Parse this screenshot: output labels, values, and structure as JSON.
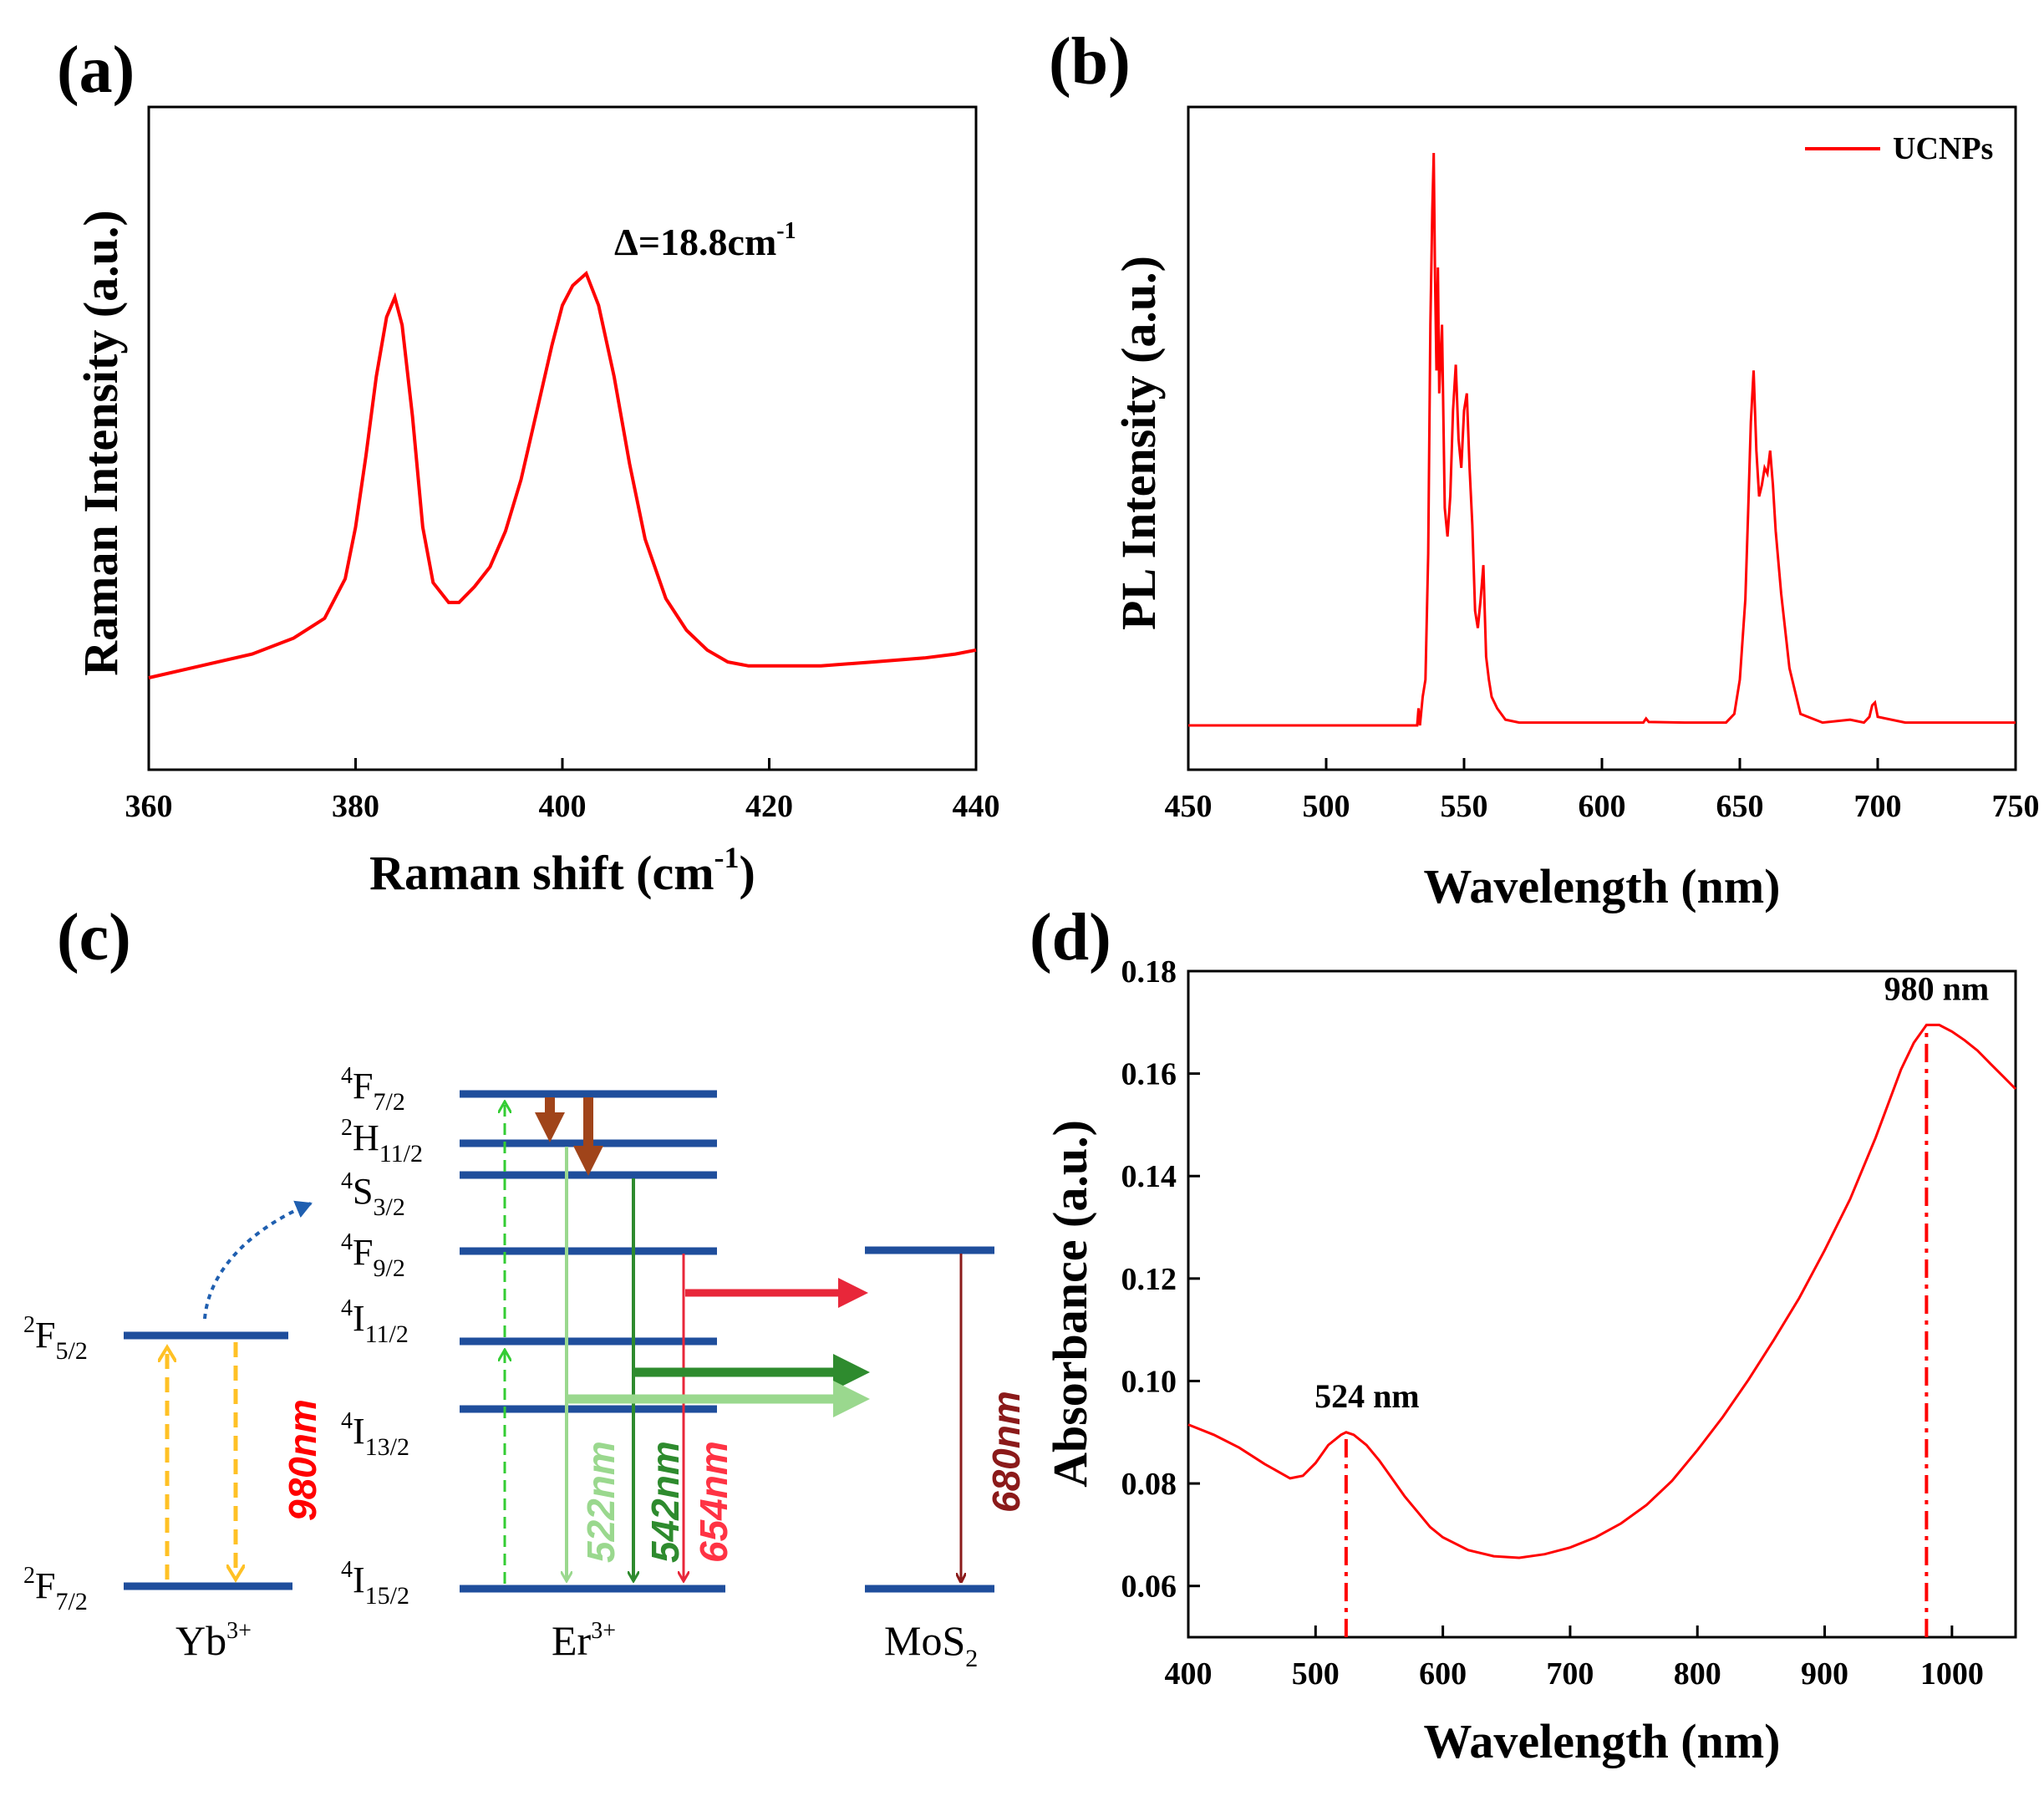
{
  "chart_data": [
    {
      "panel": "(a)",
      "type": "line",
      "xlabel": "Raman shift (cm",
      "xlabel_sup": "-1",
      "xlabel_end": ")",
      "ylabel": "Raman Intensity (a.u.)",
      "xlim": [
        360,
        440
      ],
      "xticks": [
        "360",
        "380",
        "400",
        "420",
        "440"
      ],
      "annotation": "Δ=18.8cm",
      "annotation_sup": "-1",
      "line_color": "#ff0000",
      "series": [
        {
          "name": "Raman",
          "x": [
            360,
            365,
            370,
            374,
            377,
            379,
            380,
            381,
            382,
            383,
            383.8,
            384.5,
            385.5,
            386.5,
            387.5,
            389,
            390,
            391.5,
            393,
            394.5,
            396,
            397.5,
            399,
            400,
            401,
            402.3,
            403.5,
            405,
            406.5,
            408,
            410,
            412,
            414,
            416,
            418,
            420,
            425,
            430,
            435,
            438,
            440
          ],
          "y": [
            0.04,
            0.07,
            0.1,
            0.14,
            0.19,
            0.29,
            0.42,
            0.6,
            0.8,
            0.95,
            1.0,
            0.93,
            0.7,
            0.42,
            0.28,
            0.23,
            0.23,
            0.27,
            0.32,
            0.41,
            0.54,
            0.71,
            0.88,
            0.98,
            1.03,
            1.06,
            0.98,
            0.8,
            0.58,
            0.39,
            0.24,
            0.16,
            0.11,
            0.08,
            0.07,
            0.07,
            0.07,
            0.08,
            0.09,
            0.1,
            0.11
          ]
        }
      ]
    },
    {
      "panel": "(b)",
      "type": "line",
      "xlabel": "Wavelength (nm)",
      "ylabel": "PL Intensity (a.u.)",
      "xlim": [
        450,
        750
      ],
      "xticks": [
        "450",
        "500",
        "550",
        "600",
        "650",
        "700",
        "750"
      ],
      "legend": [
        "UCNPs"
      ],
      "legend_position": "top-right",
      "line_color": "#ff0000",
      "series": [
        {
          "name": "UCNPs",
          "x": [
            450,
            500,
            533,
            533.5,
            534,
            535,
            536,
            537,
            537.8,
            538.5,
            539,
            539.5,
            540,
            540.5,
            541,
            542,
            543,
            544,
            545,
            546,
            547,
            548,
            549,
            550,
            551,
            552,
            553,
            554,
            555,
            556,
            557,
            558,
            559,
            560,
            562,
            565,
            570,
            600,
            615,
            616,
            617,
            630,
            645,
            648,
            650,
            651,
            652,
            653,
            654,
            655,
            656,
            657,
            658,
            659,
            660,
            661,
            662,
            663,
            665,
            668,
            672,
            680,
            690,
            695,
            697,
            698,
            699,
            700,
            710,
            750
          ],
          "y": [
            0.0,
            0.0,
            0.0,
            0.03,
            0.0,
            0.05,
            0.08,
            0.3,
            0.7,
            0.9,
            1.0,
            0.78,
            0.62,
            0.8,
            0.58,
            0.7,
            0.38,
            0.33,
            0.4,
            0.55,
            0.63,
            0.5,
            0.45,
            0.55,
            0.58,
            0.45,
            0.35,
            0.2,
            0.17,
            0.22,
            0.28,
            0.12,
            0.08,
            0.05,
            0.03,
            0.01,
            0.005,
            0.005,
            0.005,
            0.012,
            0.006,
            0.005,
            0.005,
            0.02,
            0.08,
            0.15,
            0.22,
            0.37,
            0.53,
            0.62,
            0.48,
            0.4,
            0.42,
            0.45,
            0.44,
            0.48,
            0.42,
            0.34,
            0.23,
            0.1,
            0.02,
            0.005,
            0.01,
            0.005,
            0.015,
            0.035,
            0.04,
            0.015,
            0.005,
            0.005
          ]
        }
      ]
    },
    {
      "panel": "(d)",
      "type": "line",
      "xlabel": "Wavelength (nm)",
      "ylabel": "Absorbance (a.u.)",
      "xlim": [
        400,
        1050
      ],
      "ylim": [
        0.05,
        0.18
      ],
      "xticks": [
        "400",
        "500",
        "600",
        "700",
        "800",
        "900",
        "1000"
      ],
      "yticks": [
        "0.06",
        "0.08",
        "0.10",
        "0.12",
        "0.14",
        "0.16",
        "0.18"
      ],
      "line_color": "#ff0000",
      "markers": [
        {
          "x": 524,
          "label": "524 nm"
        },
        {
          "x": 980,
          "label": "980 nm"
        }
      ],
      "series": [
        {
          "name": "Absorbance",
          "x": [
            400,
            420,
            440,
            460,
            480,
            490,
            500,
            510,
            520,
            524,
            530,
            540,
            550,
            560,
            570,
            580,
            590,
            600,
            620,
            640,
            660,
            680,
            700,
            720,
            740,
            760,
            780,
            800,
            820,
            840,
            860,
            880,
            900,
            920,
            940,
            960,
            970,
            980,
            990,
            1000,
            1010,
            1020,
            1030,
            1040,
            1050
          ],
          "y": [
            0.0915,
            0.0895,
            0.087,
            0.0838,
            0.081,
            0.0815,
            0.084,
            0.0875,
            0.0895,
            0.09,
            0.0895,
            0.0875,
            0.0845,
            0.081,
            0.0775,
            0.0745,
            0.0715,
            0.0695,
            0.067,
            0.0658,
            0.0655,
            0.0662,
            0.0675,
            0.0695,
            0.0722,
            0.0758,
            0.0805,
            0.0865,
            0.093,
            0.1002,
            0.108,
            0.1162,
            0.1255,
            0.1355,
            0.1475,
            0.1608,
            0.166,
            0.1695,
            0.1695,
            0.1682,
            0.1665,
            0.1645,
            0.162,
            0.1595,
            0.157
          ]
        }
      ]
    }
  ],
  "panel_c": {
    "label": "(c)",
    "yb_levels": [
      {
        "name": "F",
        "sup": "2",
        "sub": "5/2"
      },
      {
        "name": "F",
        "sup": "2",
        "sub": "7/2"
      }
    ],
    "er_levels": [
      {
        "name": "F",
        "sup": "4",
        "sub": "7/2"
      },
      {
        "name": "H",
        "sup": "2",
        "sub": "11/2"
      },
      {
        "name": "S",
        "sup": "4",
        "sub": "3/2"
      },
      {
        "name": "F",
        "sup": "4",
        "sub": "9/2"
      },
      {
        "name": "I",
        "sup": "4",
        "sub": "11/2"
      },
      {
        "name": "I",
        "sup": "4",
        "sub": "13/2"
      },
      {
        "name": "I",
        "sup": "4",
        "sub": "15/2"
      }
    ],
    "ions": [
      {
        "name": "Yb",
        "sup": "3+"
      },
      {
        "name": "Er",
        "sup": "3+"
      },
      {
        "name": "MoS",
        "sub": "2"
      }
    ],
    "wavelengths": [
      {
        "label": "980nm",
        "color": "#ff0000"
      },
      {
        "label": "522nm",
        "color": "#9ad88e"
      },
      {
        "label": "542nm",
        "color": "#2e8b2e"
      },
      {
        "label": "654nm",
        "color": "#ff3344"
      },
      {
        "label": "680nm",
        "color": "#8b1a1a"
      }
    ],
    "level_color": "#1f4e9c",
    "yb_arrow_color": "#ffc125"
  }
}
